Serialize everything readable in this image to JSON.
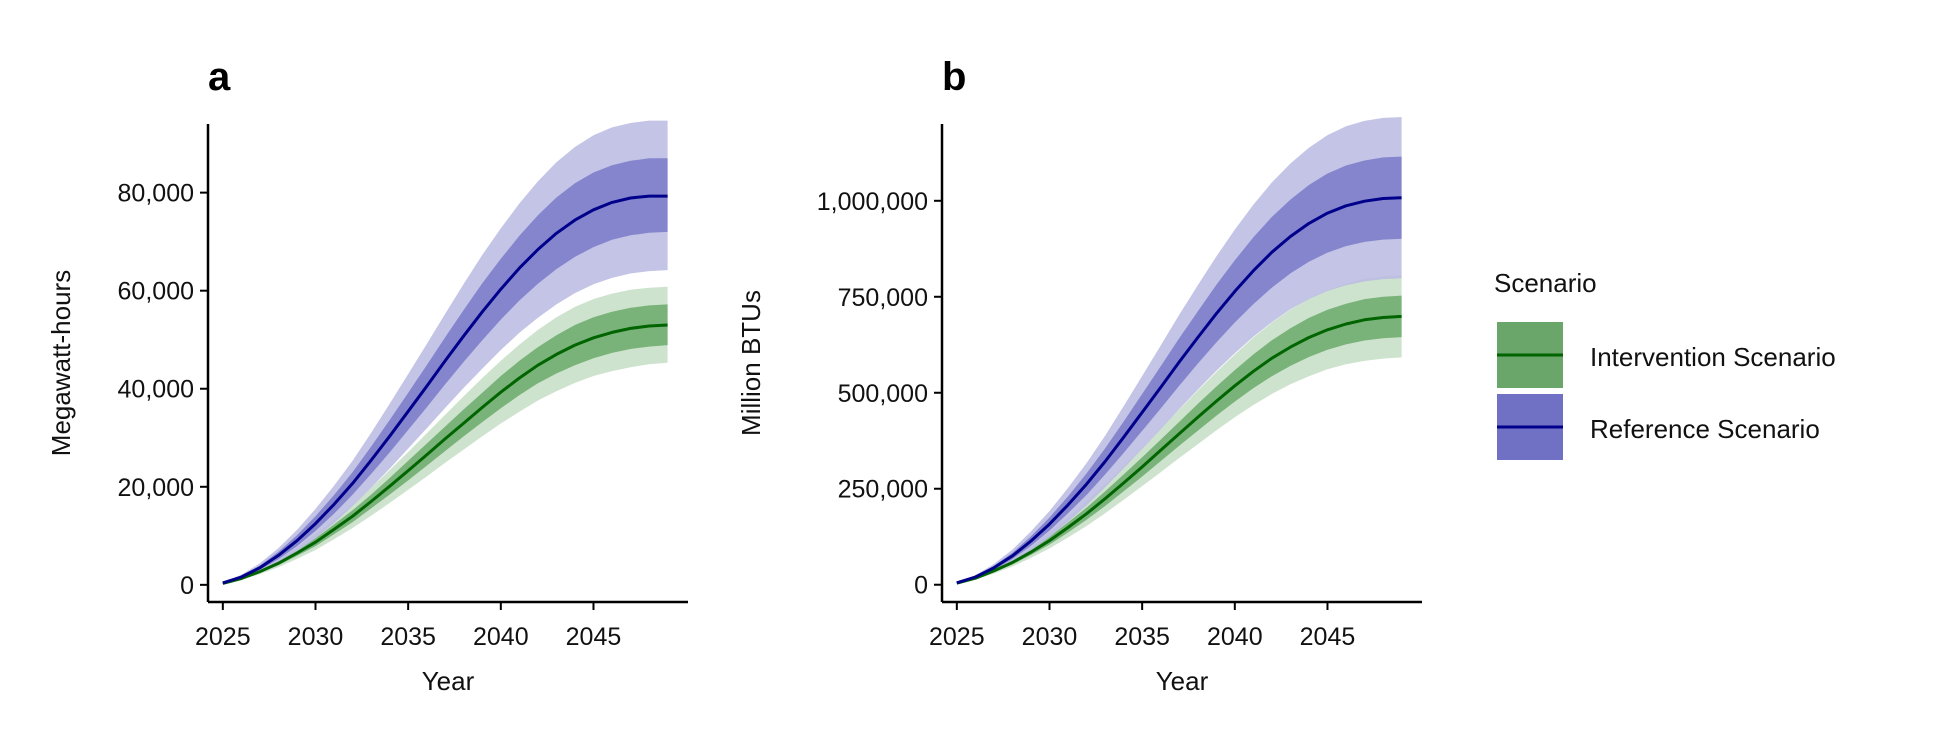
{
  "colors": {
    "intervention_line": "#006400",
    "intervention_band_outer": "#c5dec5",
    "intervention_band_inner": "#6aaa6a",
    "reference_line": "#00008b",
    "reference_band_outer": "#babae3",
    "reference_band_inner": "#7a7ac9",
    "legend_intervention_key": "#6aa56a",
    "legend_reference_key": "#7070c4"
  },
  "legend": {
    "title": "Scenario",
    "items": [
      {
        "label": "Intervention Scenario",
        "series": "intervention"
      },
      {
        "label": "Reference Scenario",
        "series": "reference"
      }
    ]
  },
  "chart_data": [
    {
      "panel": "a",
      "type": "line",
      "xlabel": "Year",
      "ylabel": "Megawatt-hours",
      "xlim": [
        2024.2,
        2050.1
      ],
      "ylim": [
        -3500,
        94000
      ],
      "x_ticks": [
        2025,
        2030,
        2035,
        2040,
        2045
      ],
      "x_tick_labels": [
        "2025",
        "2030",
        "2035",
        "2040",
        "2045"
      ],
      "y_ticks": [
        0,
        20000,
        40000,
        60000,
        80000
      ],
      "y_tick_labels": [
        "0",
        "20,000",
        "40,000",
        "60,000",
        "80,000"
      ],
      "x": [
        2025,
        2026,
        2027,
        2028,
        2029,
        2030,
        2031,
        2032,
        2033,
        2034,
        2035,
        2036,
        2037,
        2038,
        2039,
        2040,
        2041,
        2042,
        2043,
        2044,
        2045,
        2046,
        2047,
        2048,
        2049
      ],
      "series": [
        {
          "name": "Intervention Scenario",
          "key": "intervention",
          "values": [
            300,
            1300,
            2700,
            4400,
            6500,
            8700,
            11300,
            14000,
            17000,
            20100,
            23300,
            26500,
            29800,
            33000,
            36200,
            39300,
            42200,
            44800,
            47000,
            48900,
            50400,
            51500,
            52300,
            52800,
            53000
          ],
          "band_inner": {
            "lower": [
              250,
              1150,
              2450,
              4000,
              5900,
              7900,
              10300,
              12800,
              15600,
              18400,
              21300,
              24300,
              27300,
              30300,
              33200,
              36000,
              38700,
              41100,
              43100,
              44800,
              46200,
              47300,
              48100,
              48600,
              48900
            ],
            "upper": [
              350,
              1450,
              2950,
              4800,
              7100,
              9500,
              12300,
              15200,
              18400,
              21800,
              25300,
              28800,
              32300,
              35800,
              39200,
              42600,
              45700,
              48500,
              50900,
              53000,
              54600,
              55700,
              56500,
              57000,
              57200
            ]
          },
          "band_outer": {
            "lower": [
              200,
              1000,
              2200,
              3600,
              5300,
              7100,
              9300,
              11600,
              14100,
              16700,
              19400,
              22100,
              24900,
              27600,
              30300,
              32900,
              35300,
              37600,
              39500,
              41200,
              42600,
              43600,
              44400,
              45000,
              45300
            ],
            "upper": [
              400,
              1600,
              3200,
              5200,
              7700,
              10300,
              13300,
              16400,
              19800,
              23400,
              27100,
              30900,
              34700,
              38500,
              42200,
              45700,
              49000,
              52000,
              54600,
              56700,
              58300,
              59400,
              60200,
              60600,
              60800
            ]
          }
        },
        {
          "name": "Reference Scenario",
          "key": "reference",
          "values": [
            400,
            1600,
            3500,
            6000,
            9000,
            12500,
            16400,
            20700,
            25400,
            30300,
            35400,
            40500,
            45700,
            50800,
            55700,
            60300,
            64600,
            68400,
            71700,
            74400,
            76500,
            78000,
            78900,
            79300,
            79300
          ],
          "band_inner": {
            "lower": [
              330,
              1380,
              3050,
              5250,
              7900,
              11000,
              14500,
              18400,
              22600,
              27000,
              31600,
              36200,
              40900,
              45500,
              49900,
              54100,
              58000,
              61400,
              64400,
              66900,
              68900,
              70400,
              71300,
              71800,
              72000
            ],
            "upper": [
              470,
              1820,
              3950,
              6750,
              10100,
              14000,
              18300,
              23000,
              28200,
              33600,
              39200,
              44800,
              50500,
              56100,
              61500,
              66500,
              71200,
              75400,
              79000,
              81900,
              84100,
              85600,
              86500,
              87000,
              87000
            ]
          },
          "band_outer": {
            "lower": [
              260,
              1160,
              2600,
              4500,
              6800,
              9500,
              12600,
              16100,
              19800,
              23700,
              27800,
              31900,
              36100,
              40200,
              44100,
              47900,
              51400,
              54500,
              57200,
              59500,
              61300,
              62600,
              63500,
              64000,
              64200
            ],
            "upper": [
              540,
              2040,
              4400,
              7500,
              11200,
              15500,
              20200,
              25300,
              31000,
              36900,
              43000,
              49100,
              55300,
              61400,
              67300,
              72700,
              77800,
              82300,
              86200,
              89300,
              91700,
              93300,
              94200,
              94700,
              94700
            ]
          }
        }
      ]
    },
    {
      "panel": "b",
      "type": "line",
      "xlabel": "Year",
      "ylabel": "Million BTUs",
      "xlim": [
        2024.2,
        2050.1
      ],
      "ylim": [
        -45000,
        1200000
      ],
      "x_ticks": [
        2025,
        2030,
        2035,
        2040,
        2045
      ],
      "x_tick_labels": [
        "2025",
        "2030",
        "2035",
        "2040",
        "2045"
      ],
      "y_ticks": [
        0,
        250000,
        500000,
        750000,
        1000000
      ],
      "y_tick_labels": [
        "0",
        "250,000",
        "500,000",
        "750,000",
        "1,000,000"
      ],
      "x": [
        2025,
        2026,
        2027,
        2028,
        2029,
        2030,
        2031,
        2032,
        2033,
        2034,
        2035,
        2036,
        2037,
        2038,
        2039,
        2040,
        2041,
        2042,
        2043,
        2044,
        2045,
        2046,
        2047,
        2048,
        2049
      ],
      "series": [
        {
          "name": "Intervention Scenario",
          "key": "intervention",
          "values": [
            4000,
            17000,
            36000,
            58000,
            85000,
            115000,
            149000,
            185000,
            224000,
            265000,
            307000,
            350000,
            393000,
            436000,
            478000,
            518000,
            556000,
            590000,
            619000,
            644000,
            664000,
            679000,
            690000,
            696000,
            699000
          ],
          "band_inner": {
            "lower": [
              3300,
              15200,
              32500,
              52700,
              77400,
              104800,
              136000,
              169000,
              205000,
              243000,
              282000,
              322000,
              362000,
              401000,
              440000,
              477000,
              512000,
              543000,
              570000,
              593000,
              612000,
              626000,
              636000,
              642000,
              645000
            ],
            "upper": [
              4700,
              18800,
              39500,
              63300,
              92600,
              125200,
              162000,
              201000,
              243000,
              287000,
              332000,
              378000,
              424000,
              471000,
              516000,
              559000,
              600000,
              637000,
              668000,
              695000,
              716000,
              732000,
              744000,
              750000,
              753000
            ]
          },
          "band_outer": {
            "lower": [
              2600,
              13400,
              29000,
              47400,
              69800,
              94600,
              123000,
              153000,
              186000,
              221000,
              257000,
              293000,
              330000,
              366000,
              402000,
              436000,
              468000,
              497000,
              522000,
              543000,
              561000,
              574000,
              583000,
              589000,
              592000
            ],
            "upper": [
              5400,
              20600,
              43000,
              68600,
              100200,
              135400,
              175000,
              217000,
              262000,
              309000,
              357000,
              407000,
              456000,
              506000,
              554000,
              600000,
              644000,
              683000,
              716000,
              745000,
              767000,
              784000,
              797000,
              803000,
              806000
            ]
          }
        },
        {
          "name": "Reference Scenario",
          "key": "reference",
          "values": [
            5000,
            20000,
            44000,
            75000,
            114000,
            158000,
            208000,
            262000,
            321000,
            384000,
            449000,
            514000,
            580000,
            644000,
            706000,
            764000,
            818000,
            866000,
            907000,
            941000,
            968000,
            987000,
            999000,
            1006000,
            1008000
          ],
          "band_inner": {
            "lower": [
              4200,
              17700,
              39000,
              66800,
              101500,
              141000,
              186000,
              234000,
              287000,
              343000,
              401000,
              459000,
              518000,
              576000,
              631000,
              683000,
              731000,
              774000,
              811000,
              841000,
              865000,
              882000,
              893000,
              899000,
              901000
            ],
            "upper": [
              5800,
              22300,
              49000,
              83200,
              126500,
              175000,
              230000,
              290000,
              355000,
              425000,
              497000,
              569000,
              642000,
              712000,
              781000,
              845000,
              905000,
              958000,
              1003000,
              1041000,
              1071000,
              1092000,
              1105000,
              1113000,
              1115000
            ]
          },
          "band_outer": {
            "lower": [
              3400,
              15400,
              34000,
              58600,
              89000,
              124000,
              164000,
              207000,
              254000,
              303000,
              354000,
              405000,
              457000,
              508000,
              557000,
              603000,
              646000,
              684000,
              717000,
              744000,
              765000,
              780000,
              790000,
              796000,
              798000
            ],
            "upper": [
              6600,
              24600,
              54000,
              91400,
              139000,
              192000,
              252000,
              317000,
              388000,
              465000,
              544000,
              623000,
              703000,
              780000,
              855000,
              925000,
              990000,
              1048000,
              1097000,
              1138000,
              1171000,
              1194000,
              1208000,
              1216000,
              1218000
            ]
          }
        }
      ]
    }
  ]
}
